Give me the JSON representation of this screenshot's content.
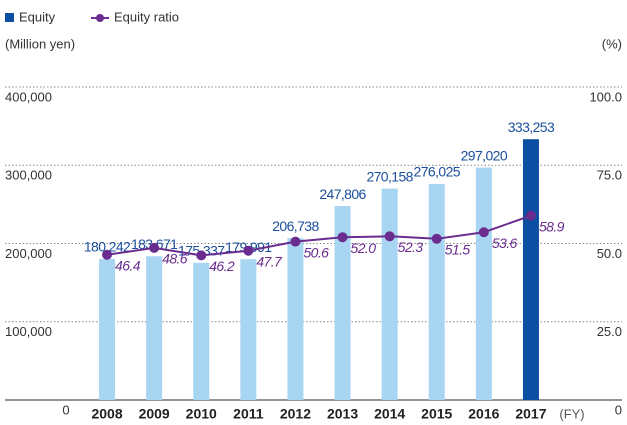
{
  "chart_data": {
    "type": "bar_line",
    "categories": [
      "2008",
      "2009",
      "2010",
      "2011",
      "2012",
      "2013",
      "2014",
      "2015",
      "2016",
      "2017"
    ],
    "x_unit": "(FY)",
    "y_label": "(Million yen)",
    "y2_label": "(%)",
    "series": [
      {
        "name": "Equity",
        "type": "bar",
        "color": "#0b4ea2",
        "bar_colors": [
          "#a8d5f2",
          "#a8d5f2",
          "#a8d5f2",
          "#a8d5f2",
          "#a8d5f2",
          "#a8d5f2",
          "#a8d5f2",
          "#a8d5f2",
          "#a8d5f2",
          "#0b4ea2"
        ],
        "label_color": "#1a4f9c",
        "values": [
          180242,
          183671,
          175337,
          179991,
          206738,
          247806,
          270158,
          276025,
          297020,
          333253
        ],
        "value_labels": [
          "180,242",
          "183,671",
          "175,337",
          "179,991",
          "206,738",
          "247,806",
          "270,158",
          "276,025",
          "297,020",
          "333,253"
        ]
      },
      {
        "name": "Equity ratio",
        "type": "line",
        "axis": "y2",
        "color": "#6a2c8e",
        "values": [
          46.4,
          48.6,
          46.2,
          47.7,
          50.6,
          52.0,
          52.3,
          51.5,
          53.6,
          58.9
        ],
        "value_labels": [
          "46.4",
          "48.6",
          "46.2",
          "47.7",
          "50.6",
          "52.0",
          "52.3",
          "51.5",
          "53.6",
          "58.9"
        ]
      }
    ],
    "ylim": [
      0,
      400000
    ],
    "yticks": [
      0,
      {
        "value": 100000,
        "label": "100,000"
      },
      {
        "value": 200000,
        "label": "200,000"
      },
      {
        "value": 300000,
        "label": "300,000"
      },
      {
        "value": 400000,
        "label": "400,000"
      }
    ],
    "y2lim": [
      0,
      100
    ],
    "y2ticks": [
      0,
      {
        "value": 25,
        "label": "25.0"
      },
      {
        "value": 50,
        "label": "50.0"
      },
      {
        "value": 75,
        "label": "75.0"
      },
      {
        "value": 100,
        "label": "100.0"
      }
    ],
    "grid": true,
    "legend": "top-left"
  }
}
